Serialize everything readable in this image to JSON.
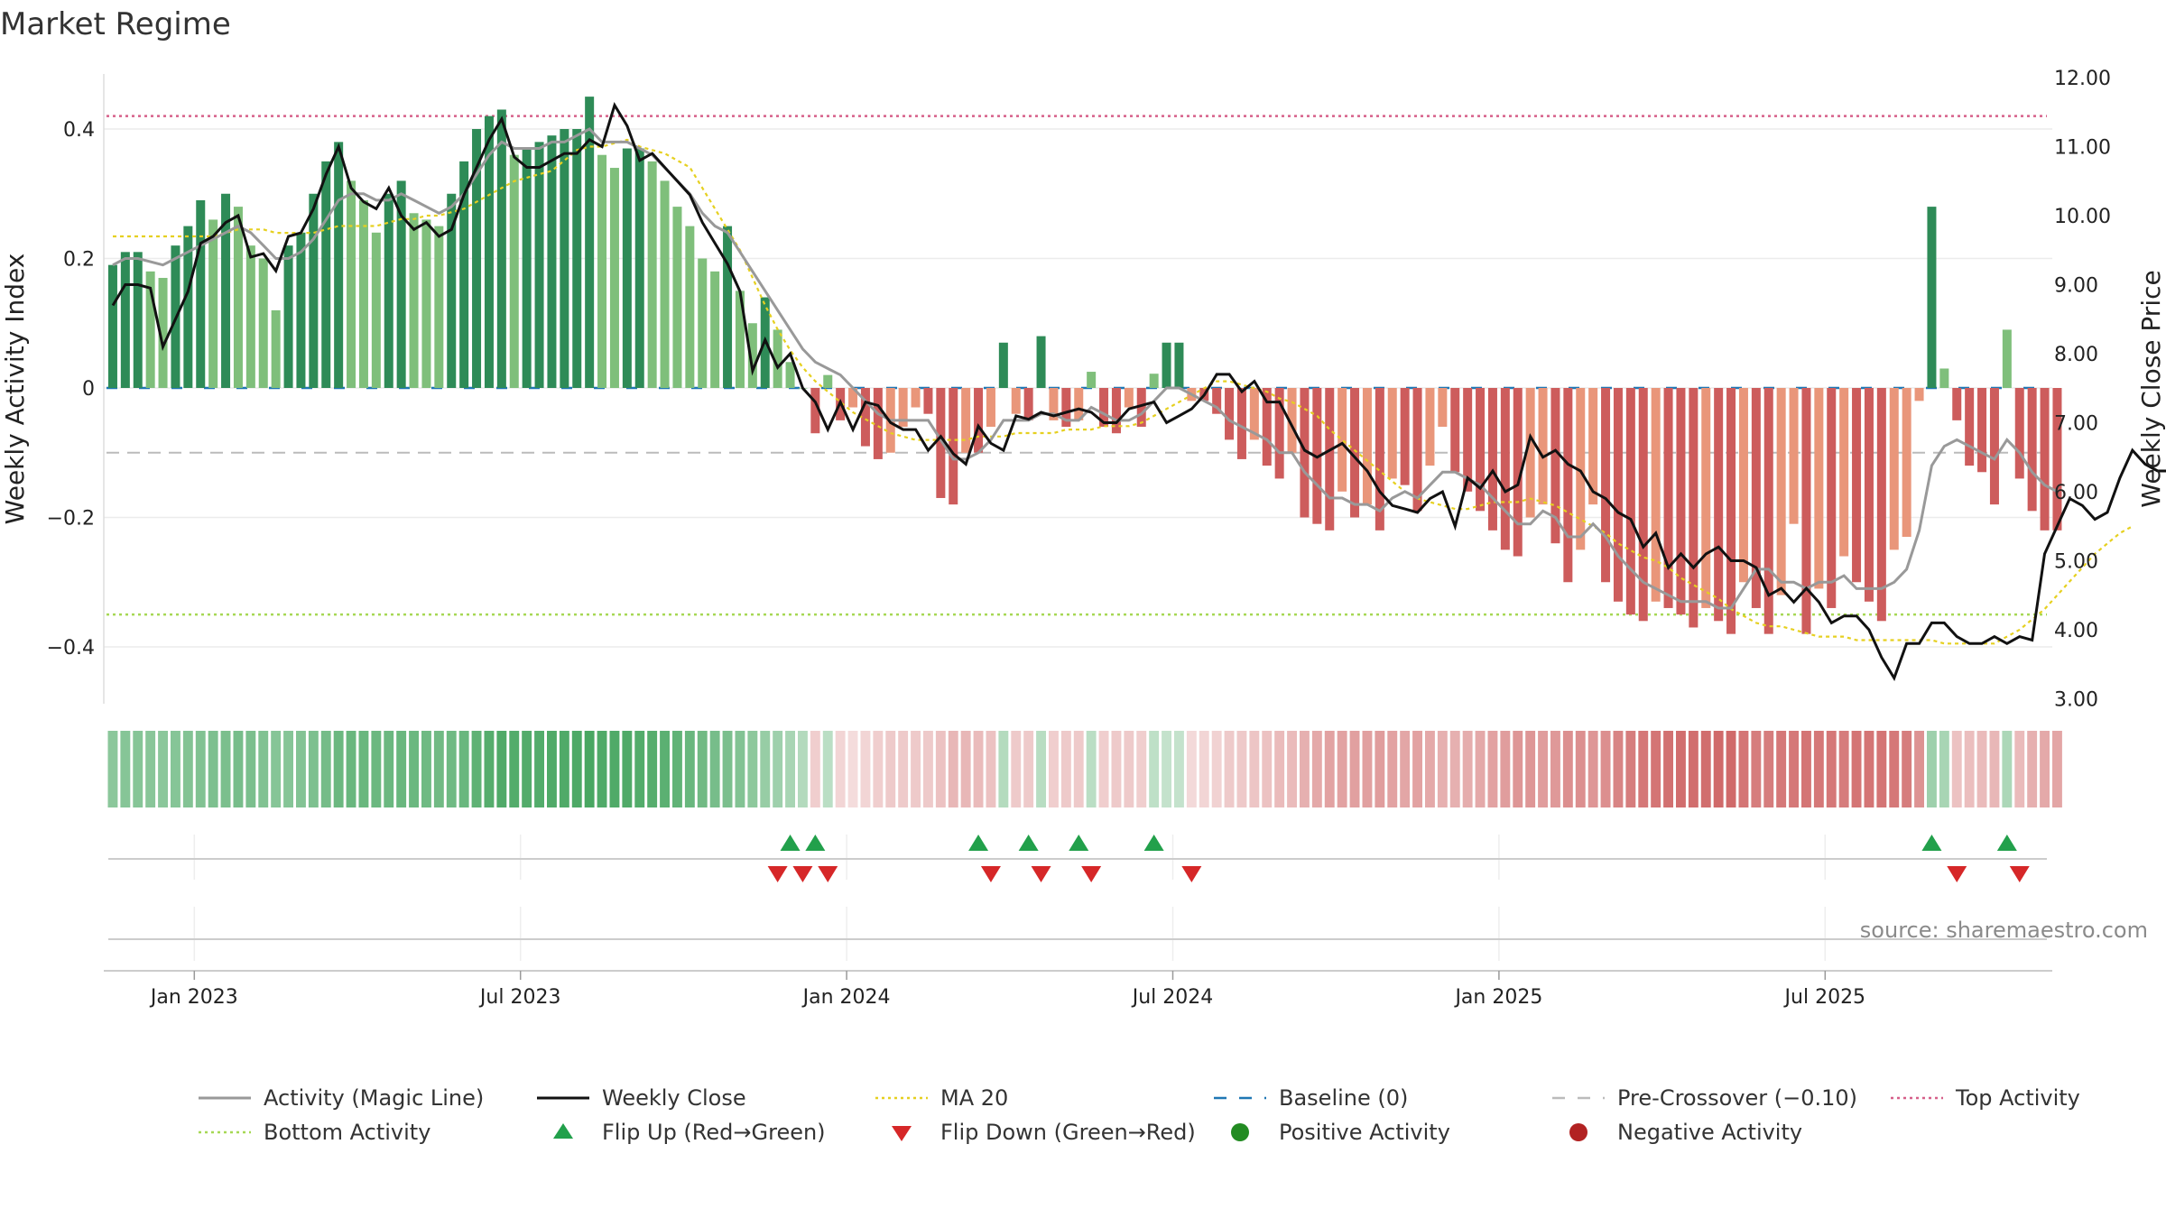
{
  "title": "Market Regime",
  "source": "source: sharemaestro.com",
  "colors": {
    "strong_green": "#2e8b57",
    "light_green": "#7fbf7b",
    "strong_red": "#cd5c5c",
    "light_red": "#e9967a",
    "magic_line": "#999999",
    "close_line": "#111111",
    "ma20": "#e6d020",
    "baseline": "#1f77b4",
    "pre_crossover": "#bbbbbb",
    "top_activity": "#d6608a",
    "bottom_activity": "#a6d854",
    "flip_up": "#22a04b",
    "flip_down": "#d62728",
    "positive": "#228b22",
    "negative": "#b22222"
  },
  "chart_data": {
    "type": "bar",
    "left_axis": {
      "label": "Weekly Activity Index",
      "range": [
        -0.49,
        0.49
      ],
      "ticks": [
        0.4,
        0.2,
        0,
        -0.2,
        -0.4
      ],
      "tick_labels": [
        "0.4",
        "0.2",
        "0",
        "−0.2",
        "−0.4"
      ]
    },
    "right_axis": {
      "label": "Weekly Close Price",
      "range": [
        2.88,
        12.07
      ],
      "ticks": [
        12,
        11,
        10,
        9,
        8,
        7,
        6,
        5,
        4,
        3
      ],
      "tick_labels": [
        "12.00",
        "11.00",
        "10.00",
        "9.00",
        "8.00",
        "7.00",
        "6.00",
        "5.00",
        "4.00",
        "3.00"
      ]
    },
    "x_axis": {
      "labels": [
        "Jan 2023",
        "Jul 2023",
        "Jan 2024",
        "Jul 2024",
        "Jan 2025",
        "Jul 2025"
      ],
      "label_weeks": [
        7,
        33,
        59,
        85,
        111,
        137
      ]
    },
    "reference_lines": {
      "top_activity": 0.42,
      "bottom_activity": -0.35,
      "pre_crossover": -0.1,
      "baseline": 0
    },
    "flip_up_weeks": [
      54,
      56,
      69,
      73,
      77,
      83,
      145,
      151
    ],
    "flip_down_weeks": [
      53,
      55,
      57,
      70,
      74,
      78,
      86,
      147,
      152
    ],
    "activity_series": {
      "name": "Weekly Activity Index",
      "values": [
        0.19,
        0.21,
        0.21,
        0.18,
        0.17,
        0.22,
        0.25,
        0.29,
        0.26,
        0.3,
        0.28,
        0.22,
        0.2,
        0.12,
        0.22,
        0.24,
        0.3,
        0.35,
        0.38,
        0.32,
        0.29,
        0.24,
        0.3,
        0.32,
        0.27,
        0.26,
        0.25,
        0.3,
        0.35,
        0.4,
        0.42,
        0.43,
        0.36,
        0.37,
        0.38,
        0.39,
        0.4,
        0.4,
        0.45,
        0.36,
        0.34,
        0.37,
        0.37,
        0.35,
        0.32,
        0.28,
        0.25,
        0.2,
        0.18,
        0.25,
        0.15,
        0.1,
        0.14,
        0.09,
        0.04,
        0.0,
        -0.07,
        0.02,
        -0.05,
        -0.03,
        -0.09,
        -0.11,
        -0.1,
        -0.06,
        -0.03,
        -0.04,
        -0.17,
        -0.18,
        -0.1,
        -0.1,
        -0.06,
        0.07,
        -0.04,
        -0.05,
        0.08,
        -0.05,
        -0.06,
        -0.05,
        0.025,
        -0.06,
        -0.07,
        -0.03,
        -0.06,
        0.022,
        0.07,
        0.07,
        -0.02,
        -0.02,
        -0.04,
        -0.08,
        -0.11,
        -0.08,
        -0.12,
        -0.14,
        -0.1,
        -0.2,
        -0.21,
        -0.22,
        -0.16,
        -0.2,
        -0.18,
        -0.22,
        -0.14,
        -0.15,
        -0.19,
        -0.12,
        -0.06,
        -0.13,
        -0.16,
        -0.19,
        -0.22,
        -0.25,
        -0.26,
        -0.2,
        -0.18,
        -0.24,
        -0.3,
        -0.25,
        -0.18,
        -0.3,
        -0.33,
        -0.35,
        -0.36,
        -0.33,
        -0.34,
        -0.35,
        -0.37,
        -0.34,
        -0.36,
        -0.38,
        -0.3,
        -0.34,
        -0.38,
        -0.32,
        -0.21,
        -0.38,
        -0.31,
        -0.34,
        -0.26,
        -0.3,
        -0.33,
        -0.36,
        -0.25,
        -0.23,
        -0.02,
        0.28,
        0.03,
        -0.05,
        -0.12,
        -0.13,
        -0.18,
        0.09,
        -0.14,
        -0.19,
        -0.22,
        -0.22
      ]
    },
    "magic_line": {
      "name": "Activity (Magic Line)",
      "values": [
        0.19,
        0.2,
        0.2,
        0.195,
        0.19,
        0.2,
        0.21,
        0.22,
        0.23,
        0.24,
        0.25,
        0.24,
        0.22,
        0.2,
        0.2,
        0.21,
        0.23,
        0.26,
        0.29,
        0.3,
        0.3,
        0.29,
        0.29,
        0.3,
        0.29,
        0.28,
        0.27,
        0.28,
        0.3,
        0.33,
        0.36,
        0.38,
        0.37,
        0.37,
        0.37,
        0.38,
        0.38,
        0.39,
        0.4,
        0.38,
        0.38,
        0.38,
        0.37,
        0.36,
        0.34,
        0.32,
        0.3,
        0.27,
        0.25,
        0.24,
        0.21,
        0.18,
        0.15,
        0.12,
        0.09,
        0.06,
        0.04,
        0.03,
        0.02,
        0.0,
        -0.02,
        -0.04,
        -0.05,
        -0.05,
        -0.05,
        -0.05,
        -0.08,
        -0.11,
        -0.11,
        -0.1,
        -0.08,
        -0.05,
        -0.05,
        -0.05,
        -0.04,
        -0.04,
        -0.05,
        -0.05,
        -0.03,
        -0.04,
        -0.05,
        -0.05,
        -0.04,
        -0.02,
        0.0,
        0.0,
        -0.01,
        -0.02,
        -0.03,
        -0.05,
        -0.06,
        -0.07,
        -0.08,
        -0.1,
        -0.1,
        -0.13,
        -0.15,
        -0.17,
        -0.17,
        -0.18,
        -0.18,
        -0.19,
        -0.17,
        -0.16,
        -0.17,
        -0.15,
        -0.13,
        -0.13,
        -0.14,
        -0.15,
        -0.17,
        -0.19,
        -0.21,
        -0.21,
        -0.19,
        -0.2,
        -0.23,
        -0.23,
        -0.21,
        -0.23,
        -0.26,
        -0.28,
        -0.3,
        -0.31,
        -0.32,
        -0.33,
        -0.33,
        -0.33,
        -0.34,
        -0.34,
        -0.31,
        -0.28,
        -0.28,
        -0.3,
        -0.3,
        -0.31,
        -0.3,
        -0.3,
        -0.29,
        -0.31,
        -0.31,
        -0.31,
        -0.3,
        -0.28,
        -0.22,
        -0.12,
        -0.09,
        -0.08,
        -0.09,
        -0.1,
        -0.11,
        -0.08,
        -0.1,
        -0.13,
        -0.15,
        -0.16
      ]
    },
    "close_series": {
      "name": "Weekly Close",
      "values": [
        8.7,
        9.0,
        9.0,
        8.95,
        8.1,
        8.5,
        8.9,
        9.6,
        9.7,
        9.9,
        10.0,
        9.4,
        9.45,
        9.2,
        9.7,
        9.75,
        10.1,
        10.6,
        11.0,
        10.4,
        10.2,
        10.1,
        10.4,
        10.0,
        9.8,
        9.9,
        9.7,
        9.8,
        10.3,
        10.7,
        11.1,
        11.4,
        10.85,
        10.7,
        10.7,
        10.8,
        10.9,
        10.9,
        11.1,
        11.0,
        11.6,
        11.3,
        10.8,
        10.9,
        10.7,
        10.5,
        10.3,
        9.9,
        9.6,
        9.3,
        8.9,
        7.75,
        8.2,
        7.8,
        8.0,
        7.5,
        7.3,
        6.9,
        7.3,
        6.9,
        7.3,
        7.25,
        7.0,
        6.9,
        6.9,
        6.6,
        6.8,
        6.55,
        6.4,
        6.95,
        6.7,
        6.6,
        7.1,
        7.05,
        7.15,
        7.1,
        7.15,
        7.2,
        7.15,
        7.0,
        7.0,
        7.2,
        7.25,
        7.3,
        7.0,
        7.1,
        7.2,
        7.4,
        7.7,
        7.7,
        7.45,
        7.6,
        7.3,
        7.3,
        6.95,
        6.6,
        6.5,
        6.6,
        6.7,
        6.5,
        6.3,
        6.0,
        5.8,
        5.75,
        5.7,
        5.9,
        6.0,
        5.5,
        6.2,
        6.05,
        6.3,
        6.0,
        6.1,
        6.8,
        6.5,
        6.6,
        6.4,
        6.3,
        6.0,
        5.9,
        5.7,
        5.6,
        5.2,
        5.4,
        4.9,
        5.1,
        4.9,
        5.1,
        5.2,
        5.0,
        5.0,
        4.9,
        4.5,
        4.6,
        4.4,
        4.6,
        4.4,
        4.1,
        4.2,
        4.2,
        4.0,
        3.6,
        3.3,
        3.8,
        3.8,
        4.1,
        4.1,
        3.9,
        3.8,
        3.8,
        3.9,
        3.8,
        3.9,
        3.85,
        5.1,
        5.5,
        5.9,
        5.8,
        5.6,
        5.7,
        6.2,
        6.6,
        6.4,
        6.3,
        6.3,
        5.9,
        6.0
      ]
    },
    "ma20_series": {
      "name": "MA 20",
      "values": [
        9.7,
        9.7,
        9.7,
        9.7,
        9.7,
        9.7,
        9.7,
        9.7,
        9.7,
        9.75,
        9.8,
        9.8,
        9.8,
        9.75,
        9.75,
        9.75,
        9.75,
        9.8,
        9.85,
        9.85,
        9.85,
        9.85,
        9.9,
        9.95,
        9.95,
        10.0,
        10.0,
        10.05,
        10.1,
        10.2,
        10.3,
        10.4,
        10.5,
        10.55,
        10.6,
        10.65,
        10.8,
        10.95,
        11.0,
        11.0,
        11.05,
        11.1,
        11.0,
        10.95,
        10.9,
        10.8,
        10.7,
        10.4,
        10.1,
        9.8,
        9.5,
        9.1,
        8.7,
        8.35,
        8.05,
        7.8,
        7.6,
        7.45,
        7.3,
        7.15,
        7.05,
        6.95,
        6.85,
        6.8,
        6.75,
        6.75,
        6.75,
        6.75,
        6.75,
        6.8,
        6.8,
        6.8,
        6.85,
        6.85,
        6.85,
        6.85,
        6.9,
        6.9,
        6.9,
        6.95,
        6.95,
        6.95,
        7.0,
        7.1,
        7.2,
        7.3,
        7.4,
        7.5,
        7.6,
        7.6,
        7.55,
        7.5,
        7.45,
        7.35,
        7.3,
        7.2,
        7.1,
        6.9,
        6.75,
        6.6,
        6.45,
        6.3,
        6.15,
        6.0,
        5.9,
        5.85,
        5.8,
        5.75,
        5.75,
        5.8,
        5.85,
        5.85,
        5.85,
        5.9,
        5.85,
        5.8,
        5.7,
        5.6,
        5.5,
        5.4,
        5.25,
        5.15,
        5.05,
        5.0,
        4.9,
        4.75,
        4.65,
        4.55,
        4.45,
        4.3,
        4.2,
        4.1,
        4.05,
        4.05,
        4.0,
        3.95,
        3.9,
        3.9,
        3.9,
        3.85,
        3.85,
        3.85,
        3.85,
        3.85,
        3.85,
        3.85,
        3.8,
        3.8,
        3.8,
        3.8,
        3.8,
        3.9,
        4.0,
        4.15,
        4.3,
        4.5,
        4.7,
        4.9,
        5.1,
        5.25,
        5.4,
        5.5
      ]
    }
  },
  "legend": {
    "items": [
      {
        "label": "Activity (Magic Line)",
        "style": "solid",
        "color": "#999999"
      },
      {
        "label": "Weekly Close",
        "style": "solid",
        "color": "#111111"
      },
      {
        "label": "MA 20",
        "style": "dotted",
        "color": "#e6d020"
      },
      {
        "label": "Baseline (0)",
        "style": "dashed",
        "color": "#1f77b4"
      },
      {
        "label": "Pre-Crossover (−0.10)",
        "style": "dashed",
        "color": "#bbbbbb"
      },
      {
        "label": "Top Activity",
        "style": "dotted",
        "color": "#d6608a"
      },
      {
        "label": "Bottom Activity",
        "style": "dotted",
        "color": "#a6d854"
      },
      {
        "label": "Flip Up (Red→Green)",
        "style": "triangle-up",
        "color": "#22a04b"
      },
      {
        "label": "Flip Down (Green→Red)",
        "style": "triangle-down",
        "color": "#d62728"
      },
      {
        "label": "Positive Activity",
        "style": "circle",
        "color": "#228b22"
      },
      {
        "label": "Negative Activity",
        "style": "circle",
        "color": "#b22222"
      }
    ]
  }
}
